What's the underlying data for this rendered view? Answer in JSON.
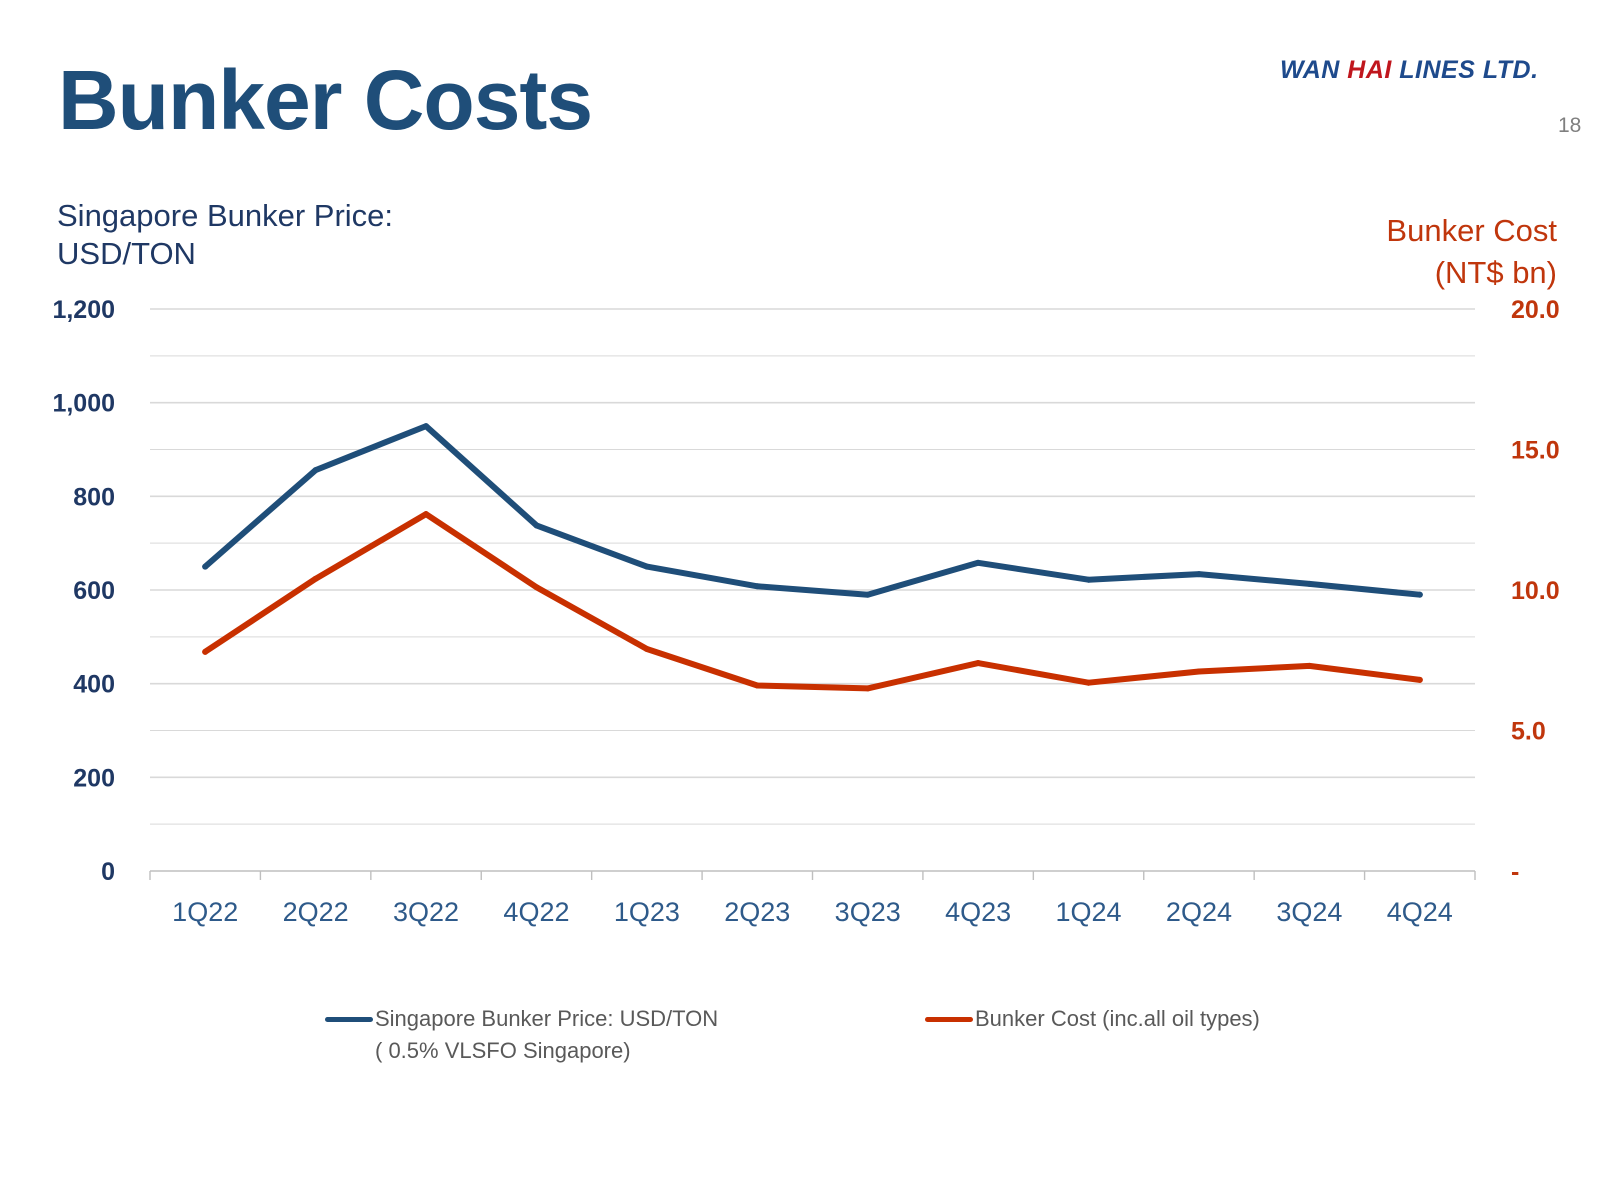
{
  "slide": {
    "title": "Bunker Costs",
    "logo_part1": "WAN ",
    "logo_part2": "HAI",
    "logo_part3": " LINES LTD.",
    "page_number": "18"
  },
  "axes": {
    "left_title_line1": "Singapore Bunker Price:",
    "left_title_line2": "USD/TON",
    "right_title_line1": "Bunker Cost",
    "right_title_line2": "(NT$ bn)"
  },
  "legend": {
    "series1_label": "Singapore Bunker Price: USD/TON",
    "series1_sublabel": "( 0.5% VLSFO Singapore)",
    "series2_label": "Bunker Cost (inc.all oil types)"
  },
  "colors": {
    "blue": "#1f4e79",
    "orange": "#c83000",
    "grid": "#d9d9d9",
    "axis_line": "#bfbfbf",
    "left_tick": "#1f3864",
    "right_tick": "#c0360c",
    "category_label": "#2e5a8a"
  },
  "chart_data": {
    "type": "line",
    "title": "Bunker Costs",
    "categories": [
      "1Q22",
      "2Q22",
      "3Q22",
      "4Q22",
      "1Q23",
      "2Q23",
      "3Q23",
      "4Q23",
      "1Q24",
      "2Q24",
      "3Q24",
      "4Q24"
    ],
    "series": [
      {
        "name": "Singapore Bunker Price: USD/TON ( 0.5% VLSFO Singapore)",
        "axis": "left",
        "color": "#1f4e79",
        "values": [
          650,
          856,
          950,
          738,
          650,
          608,
          590,
          658,
          622,
          634,
          613,
          590
        ]
      },
      {
        "name": "Bunker Cost (inc.all oil types)",
        "axis": "right",
        "color": "#c83000",
        "values": [
          7.8,
          10.4,
          12.7,
          10.1,
          7.9,
          6.6,
          6.5,
          7.4,
          6.7,
          7.1,
          7.3,
          6.8
        ]
      }
    ],
    "y_left": {
      "label": "Singapore Bunker Price: USD/TON",
      "ylim": [
        0,
        1200
      ],
      "ticks": [
        0,
        200,
        400,
        600,
        800,
        1000,
        1200
      ],
      "tick_labels": [
        "0",
        "200",
        "400",
        "600",
        "800",
        "1,000",
        "1,200"
      ]
    },
    "y_right": {
      "label": "Bunker Cost (NT$ bn)",
      "ylim": [
        0,
        20
      ],
      "ticks": [
        0,
        5,
        10,
        15,
        20
      ],
      "tick_labels": [
        "-",
        "5.0",
        "10.0",
        "15.0",
        "20.0"
      ]
    },
    "grid": true,
    "legend_position": "bottom"
  }
}
